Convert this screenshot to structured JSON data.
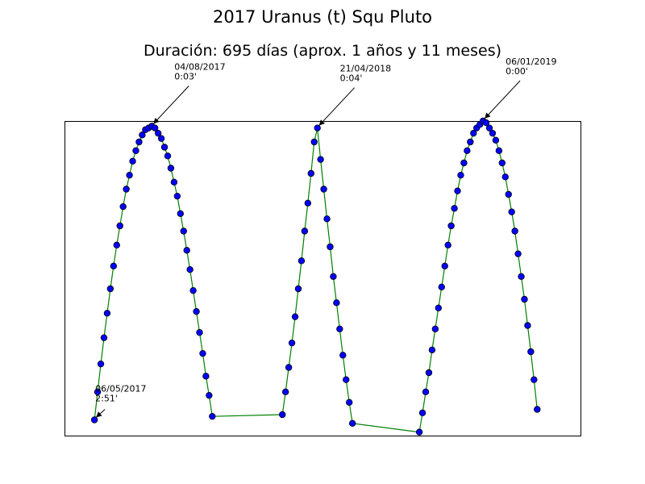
{
  "chart_data": {
    "type": "line",
    "title": "2017 Uranus (t) Squ Pluto",
    "subtitle": "Duración: 695 días (aprox. 1 años y 11 meses)",
    "x": [
      0,
      5,
      10,
      15,
      20,
      25,
      30,
      35,
      40,
      45,
      50,
      55,
      60,
      65,
      70,
      75,
      80,
      85,
      90,
      95,
      100,
      105,
      110,
      115,
      120,
      125,
      130,
      135,
      140,
      145,
      150,
      155,
      160,
      165,
      170,
      175,
      180,
      185,
      295,
      300,
      305,
      310,
      315,
      320,
      325,
      330,
      335,
      340,
      345,
      350,
      355,
      360,
      365,
      370,
      375,
      380,
      385,
      390,
      395,
      400,
      405,
      510,
      515,
      520,
      525,
      530,
      535,
      540,
      545,
      550,
      555,
      560,
      565,
      570,
      575,
      580,
      585,
      590,
      595,
      600,
      605,
      610,
      615,
      620,
      625,
      630,
      635,
      640,
      645,
      650,
      655,
      660,
      665,
      670,
      675,
      680,
      685,
      690,
      695
    ],
    "series": [
      {
        "color": "#008000",
        "marker_color": "#0000ff",
        "values": [
          171,
          155,
          139,
          124,
          110,
          96,
          83,
          71,
          60,
          49,
          39,
          31,
          23,
          17,
          12,
          8,
          5,
          4,
          3,
          4,
          7,
          10,
          15,
          20,
          27,
          35,
          43,
          53,
          63,
          74,
          85,
          97,
          109,
          121,
          133,
          146,
          157,
          169,
          168,
          155,
          141,
          127,
          112,
          96,
          80,
          63,
          47,
          30,
          12,
          4,
          22,
          39,
          56,
          72,
          89,
          104,
          119,
          134,
          148,
          161,
          173,
          178,
          167,
          155,
          144,
          131,
          119,
          107,
          95,
          83,
          71,
          60,
          50,
          40,
          31,
          24,
          17,
          12,
          7,
          4,
          2,
          0,
          1,
          4,
          7,
          11,
          17,
          24,
          32,
          42,
          52,
          63,
          76,
          89,
          102,
          117,
          132,
          148,
          165
        ]
      }
    ],
    "xlim": [
      -47,
      763
    ],
    "ylim": [
      180,
      0
    ],
    "annotations": [
      {
        "lines": [
          "06/05/2017",
          "2:51'"
        ],
        "x": 0,
        "y": 171
      },
      {
        "lines": [
          "04/08/2017",
          "0:03'"
        ],
        "x": 90,
        "y": 3
      },
      {
        "lines": [
          "21/04/2018",
          "0:04'"
        ],
        "x": 350,
        "y": 4
      },
      {
        "lines": [
          "06/01/2019",
          "0:00'"
        ],
        "x": 610,
        "y": 0
      }
    ]
  }
}
